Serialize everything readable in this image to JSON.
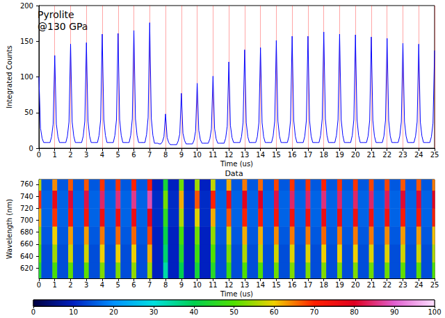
{
  "chart_data": [
    {
      "type": "line",
      "annotations": [
        "Pyrolite",
        "@130 GPa"
      ],
      "xlabel": "Time (us)",
      "ylabel": "Integrated Counts",
      "color": "#0000ff",
      "grid": true,
      "xlim": [
        0,
        25
      ],
      "xticks": [
        0,
        1,
        2,
        3,
        4,
        5,
        6,
        7,
        8,
        9,
        10,
        11,
        12,
        13,
        14,
        15,
        16,
        17,
        18,
        19,
        20,
        21,
        22,
        23,
        24,
        25
      ],
      "ylim": [
        0,
        200
      ],
      "yticks": [
        0,
        50,
        100,
        150,
        200
      ],
      "x": [
        0,
        0.1,
        0.2,
        0.3,
        0.4,
        0.5,
        0.6,
        0.7,
        0.8,
        0.9,
        1,
        1.1,
        1.2,
        1.3,
        1.4,
        1.5,
        1.6,
        1.7,
        1.8,
        1.9,
        2,
        2.1,
        2.2,
        2.3,
        2.4,
        2.5,
        2.6,
        2.7,
        2.8,
        2.9,
        3,
        3.1,
        3.2,
        3.3,
        3.4,
        3.5,
        3.6,
        3.7,
        3.8,
        3.9,
        4,
        4.1,
        4.2,
        4.3,
        4.4,
        4.5,
        4.6,
        4.7,
        4.8,
        4.9,
        5,
        5.1,
        5.2,
        5.3,
        5.4,
        5.5,
        5.6,
        5.7,
        5.8,
        5.9,
        6,
        6.1,
        6.2,
        6.3,
        6.4,
        6.5,
        6.6,
        6.7,
        6.8,
        6.9,
        7,
        7.1,
        7.2,
        7.3,
        7.4,
        7.5,
        7.6,
        7.7,
        7.8,
        7.9,
        8,
        8.1,
        8.2,
        8.3,
        8.4,
        8.5,
        8.6,
        8.7,
        8.8,
        8.9,
        9,
        9.1,
        9.2,
        9.3,
        9.4,
        9.5,
        9.6,
        9.7,
        9.8,
        9.9,
        10,
        10.1,
        10.2,
        10.3,
        10.4,
        10.5,
        10.6,
        10.7,
        10.8,
        10.9,
        11,
        11.1,
        11.2,
        11.3,
        11.4,
        11.5,
        11.6,
        11.7,
        11.8,
        11.9,
        12,
        12.1,
        12.2,
        12.3,
        12.4,
        12.5,
        12.6,
        12.7,
        12.8,
        12.9,
        13,
        13.1,
        13.2,
        13.3,
        13.4,
        13.5,
        13.6,
        13.7,
        13.8,
        13.9,
        14,
        14.1,
        14.2,
        14.3,
        14.4,
        14.5,
        14.6,
        14.7,
        14.8,
        14.9,
        15,
        15.1,
        15.2,
        15.3,
        15.4,
        15.5,
        15.6,
        15.7,
        15.8,
        15.9,
        16,
        16.1,
        16.2,
        16.3,
        16.4,
        16.5,
        16.6,
        16.7,
        16.8,
        16.9,
        17,
        17.1,
        17.2,
        17.3,
        17.4,
        17.5,
        17.6,
        17.7,
        17.8,
        17.9,
        18,
        18.1,
        18.2,
        18.3,
        18.4,
        18.5,
        18.6,
        18.7,
        18.8,
        18.9,
        19,
        19.1,
        19.2,
        19.3,
        19.4,
        19.5,
        19.6,
        19.7,
        19.8,
        19.9,
        20,
        20.1,
        20.2,
        20.3,
        20.4,
        20.5,
        20.6,
        20.7,
        20.8,
        20.9,
        21,
        21.1,
        21.2,
        21.3,
        21.4,
        21.5,
        21.6,
        21.7,
        21.8,
        21.9,
        22,
        22.1,
        22.2,
        22.3,
        22.4,
        22.5,
        22.6,
        22.7,
        22.8,
        22.9,
        23,
        23.1,
        23.2,
        23.3,
        23.4,
        23.5,
        23.6,
        23.7,
        23.8,
        23.9,
        24,
        24.1,
        24.2,
        24.3,
        24.4,
        24.5,
        24.6,
        24.7,
        24.8,
        24.9,
        25
      ],
      "values": [
        100,
        28,
        14,
        8,
        8,
        8,
        8,
        8,
        16,
        34,
        130,
        34,
        16,
        8,
        8,
        8,
        8,
        8,
        17,
        37,
        146,
        37,
        17,
        8,
        8,
        8,
        8,
        8,
        17,
        38,
        148,
        38,
        17,
        8,
        8,
        8,
        8,
        8,
        18,
        40,
        160,
        40,
        18,
        8,
        8,
        8,
        8,
        8,
        18,
        40,
        161,
        40,
        18,
        8,
        8,
        8,
        8,
        8,
        18,
        41,
        165,
        41,
        18,
        8,
        8,
        8,
        8,
        8,
        19,
        43,
        176,
        42,
        18,
        7,
        7,
        7,
        6,
        6,
        9,
        16,
        48,
        15,
        8,
        5,
        5,
        5,
        5,
        5,
        10,
        20,
        77,
        21,
        11,
        6,
        6,
        6,
        6,
        6,
        11,
        24,
        91,
        25,
        12,
        7,
        7,
        7,
        7,
        7,
        13,
        27,
        101,
        27,
        13,
        7,
        7,
        7,
        7,
        7,
        14,
        31,
        121,
        32,
        15,
        8,
        8,
        8,
        8,
        8,
        16,
        36,
        138,
        36,
        16,
        8,
        8,
        8,
        8,
        8,
        16,
        36,
        141,
        36,
        16,
        8,
        8,
        8,
        8,
        8,
        17,
        38,
        151,
        38,
        17,
        8,
        8,
        8,
        8,
        8,
        17,
        39,
        157,
        39,
        17,
        8,
        8,
        8,
        8,
        8,
        17,
        39,
        157,
        39,
        17,
        8,
        8,
        8,
        8,
        8,
        18,
        41,
        163,
        41,
        18,
        8,
        8,
        8,
        8,
        8,
        18,
        40,
        160,
        40,
        18,
        8,
        8,
        8,
        8,
        8,
        18,
        40,
        159,
        40,
        18,
        8,
        8,
        8,
        8,
        8,
        17,
        39,
        156,
        39,
        17,
        8,
        8,
        8,
        8,
        8,
        17,
        39,
        154,
        39,
        17,
        8,
        8,
        8,
        8,
        8,
        17,
        37,
        147,
        37,
        17,
        8,
        8,
        8,
        8,
        8,
        17,
        37,
        146,
        37,
        17,
        8,
        8,
        8,
        8,
        8,
        16,
        35,
        137
      ]
    },
    {
      "type": "heatmap",
      "title": "Data",
      "xlabel": "Time (us)",
      "ylabel": "Wavelength (nm)",
      "grid": false,
      "xlim": [
        0,
        25
      ],
      "xticks": [
        0,
        1,
        2,
        3,
        4,
        5,
        6,
        7,
        8,
        9,
        10,
        11,
        12,
        13,
        14,
        15,
        16,
        17,
        18,
        19,
        20,
        21,
        22,
        23,
        24,
        25
      ],
      "ylim": [
        603,
        768
      ],
      "yticks": [
        620,
        640,
        660,
        680,
        700,
        720,
        740,
        760
      ],
      "time_edges": [
        0,
        0.15,
        0.85,
        1.15,
        1.85,
        2.15,
        2.85,
        3.15,
        3.85,
        4.15,
        4.85,
        5.15,
        5.85,
        6.15,
        6.85,
        7.15,
        7.85,
        8.15,
        8.85,
        9.15,
        9.85,
        10.15,
        10.85,
        11.15,
        11.85,
        12.15,
        12.85,
        13.15,
        13.85,
        14.15,
        14.85,
        15.15,
        15.85,
        16.15,
        16.85,
        17.15,
        17.85,
        18.15,
        18.85,
        19.15,
        19.85,
        20.15,
        20.85,
        21.15,
        21.85,
        22.15,
        22.85,
        23.15,
        23.85,
        24.15,
        24.85,
        25
      ],
      "wavelength_edges": [
        603,
        630,
        660,
        690,
        720,
        750,
        768
      ],
      "cells": [
        [
          44,
          14,
          49,
          14,
          51,
          14,
          51,
          14,
          53,
          14,
          53,
          14,
          54,
          14,
          55,
          10,
          34,
          10,
          40,
          10,
          43,
          10,
          45,
          14,
          48,
          14,
          50,
          14,
          50,
          14,
          52,
          14,
          53,
          14,
          53,
          14,
          53,
          14,
          53,
          14,
          53,
          14,
          52,
          14,
          52,
          14,
          51,
          14,
          51,
          14,
          50
        ],
        [
          50,
          14,
          55,
          14,
          58,
          14,
          58,
          14,
          60,
          14,
          60,
          14,
          60,
          14,
          62,
          10,
          38,
          10,
          45,
          10,
          48,
          10,
          50,
          14,
          53,
          14,
          56,
          14,
          57,
          14,
          58,
          14,
          59,
          14,
          59,
          14,
          60,
          14,
          60,
          14,
          60,
          14,
          59,
          14,
          59,
          14,
          58,
          14,
          58,
          14,
          56
        ],
        [
          54,
          15,
          60,
          15,
          63,
          15,
          63,
          15,
          65,
          15,
          66,
          15,
          66,
          15,
          68,
          10,
          41,
          10,
          49,
          10,
          52,
          10,
          54,
          15,
          58,
          15,
          62,
          15,
          62,
          15,
          64,
          15,
          65,
          15,
          65,
          15,
          66,
          15,
          65,
          15,
          65,
          15,
          65,
          15,
          64,
          15,
          63,
          15,
          63,
          15,
          61
        ],
        [
          62,
          16,
          69,
          16,
          72,
          16,
          73,
          16,
          75,
          16,
          75,
          16,
          76,
          16,
          78,
          11,
          46,
          11,
          56,
          11,
          59,
          11,
          62,
          16,
          67,
          16,
          70,
          16,
          71,
          16,
          73,
          16,
          74,
          16,
          74,
          16,
          76,
          16,
          75,
          16,
          75,
          16,
          74,
          16,
          74,
          16,
          72,
          16,
          72,
          16,
          70
        ],
        [
          69,
          16,
          77,
          16,
          81,
          16,
          82,
          16,
          84,
          16,
          85,
          16,
          86,
          16,
          88,
          11,
          52,
          11,
          62,
          11,
          67,
          11,
          70,
          16,
          75,
          16,
          79,
          16,
          80,
          16,
          82,
          16,
          84,
          16,
          84,
          16,
          85,
          16,
          84,
          16,
          84,
          16,
          84,
          16,
          83,
          16,
          81,
          16,
          81,
          16,
          79
        ],
        [
          57,
          15,
          64,
          15,
          67,
          15,
          67,
          15,
          69,
          15,
          69,
          15,
          70,
          15,
          72,
          10,
          43,
          10,
          52,
          10,
          55,
          10,
          57,
          15,
          62,
          15,
          65,
          15,
          66,
          15,
          68,
          15,
          69,
          15,
          69,
          15,
          70,
          15,
          69,
          15,
          69,
          15,
          68,
          15,
          68,
          15,
          67,
          15,
          67,
          15,
          65
        ]
      ],
      "colorbar_range": [
        0,
        100
      ],
      "colorbar_ticks": [
        0,
        10,
        20,
        30,
        40,
        50,
        60,
        70,
        80,
        90,
        100
      ]
    }
  ]
}
